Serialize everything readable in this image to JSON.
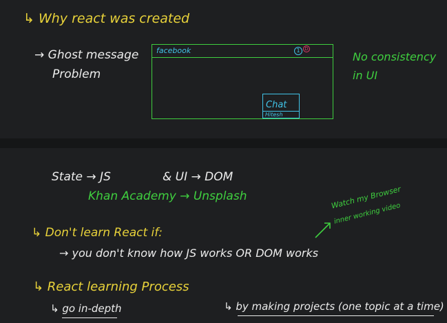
{
  "sections": {
    "why_created": "↳ Why react was created",
    "ghost_line1": "→ Ghost message",
    "ghost_line2": "Problem",
    "facebook": "facebook",
    "notif_icon": "1",
    "notif_dot": "D",
    "chat": "Chat",
    "hitesh": "Hitesh",
    "no_consistency_1": "No consistency",
    "no_consistency_2": "in UI",
    "state_line": "State → JS",
    "ui_line": "& UI → DOM",
    "khan_line": "Khan Academy → Unsplash",
    "watch_1": "Watch my Browser",
    "watch_2": "inner working video",
    "dont_learn": "↳ Don't learn React if:",
    "dont_learn_detail": "→ you don't know how JS works OR DOM works",
    "learning_process": "↳ React learning Process",
    "in_depth": "↳ go in-depth",
    "by_projects": "↳ by making projects (one topic at a time)"
  },
  "colors": {
    "background": "#1e1f21",
    "yellow": "#e8d23a",
    "white": "#ececec",
    "green": "#3fcf3f",
    "cyan": "#41c4e8",
    "pink": "#e23a6a"
  }
}
